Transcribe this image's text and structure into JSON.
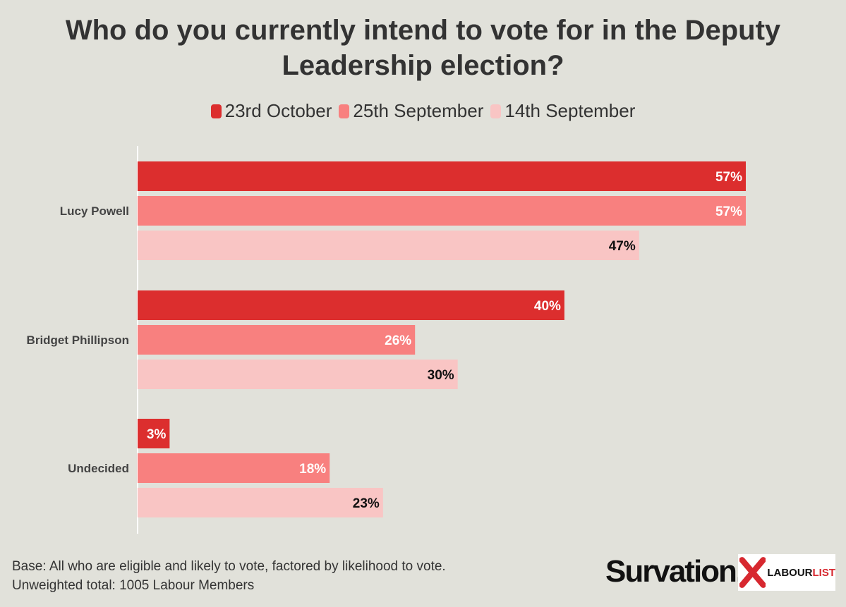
{
  "chart_data": {
    "type": "bar",
    "orientation": "horizontal",
    "title": "Who do you currently intend to vote for in the Deputy Leadership election?",
    "categories": [
      "Lucy Powell",
      "Bridget Phillipson",
      "Undecided"
    ],
    "series": [
      {
        "name": "23rd October",
        "color": "#dc2e2e",
        "values": [
          57,
          40,
          3
        ],
        "labels": [
          "57%",
          "40%",
          "3%"
        ]
      },
      {
        "name": "25th September",
        "color": "#f8807f",
        "values": [
          57,
          26,
          18
        ],
        "labels": [
          "57%",
          "26%",
          "18%"
        ]
      },
      {
        "name": "14th September",
        "color": "#f9c5c4",
        "values": [
          47,
          30,
          23
        ],
        "labels": [
          "47%",
          "30%",
          "23%"
        ]
      }
    ],
    "xlim": [
      0,
      57
    ],
    "legend": "top-center",
    "grid": false
  },
  "footnote": {
    "line1": "Base: All who are eligible and likely to vote, factored by likelihood to vote.",
    "line2": "Unweighted total: 1005 Labour Members"
  },
  "logos": {
    "survation": "Survation.",
    "labourlist_a": "LABOUR",
    "labourlist_b": "LIST"
  }
}
